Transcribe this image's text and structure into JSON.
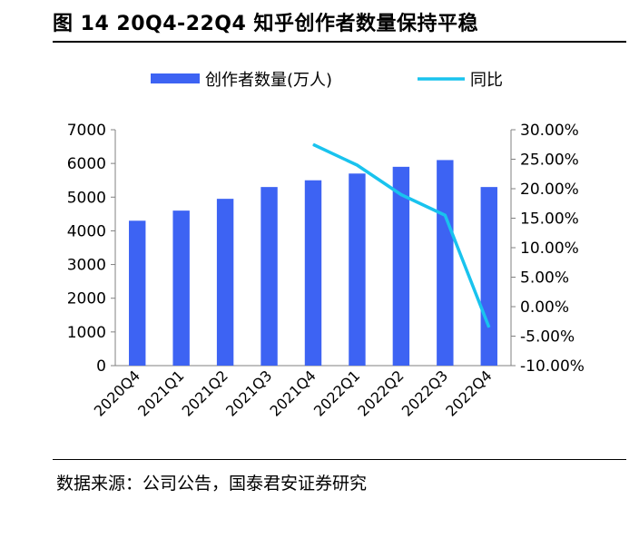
{
  "figure": {
    "title": "图 14 20Q4-22Q4 知乎创作者数量保持平稳",
    "source": "数据来源：公司公告，国泰君安证券研究"
  },
  "colors": {
    "bar": "#3D63F3",
    "line": "#19C3EE",
    "axis": "#808080"
  },
  "chart_data": {
    "type": "bar",
    "categories": [
      "2020Q4",
      "2021Q1",
      "2021Q2",
      "2021Q3",
      "2021Q4",
      "2022Q1",
      "2022Q2",
      "2022Q3",
      "2022Q4"
    ],
    "series": [
      {
        "name": "创作者数量(万人)",
        "type": "bar",
        "axis": "left",
        "values": [
          4300,
          4600,
          4950,
          5300,
          5500,
          5700,
          5900,
          6100,
          5300
        ]
      },
      {
        "name": "同比",
        "type": "line",
        "axis": "right",
        "values": [
          null,
          null,
          null,
          null,
          0.275,
          0.24,
          0.19,
          0.155,
          -0.035
        ]
      }
    ],
    "ylim_left": [
      0,
      7000
    ],
    "yticks_left": [
      "0",
      "1000",
      "2000",
      "3000",
      "4000",
      "5000",
      "6000",
      "7000"
    ],
    "ylim_right": [
      -0.1,
      0.3
    ],
    "yticks_right": [
      "-10.00%",
      "-5.00%",
      "0.00%",
      "5.00%",
      "10.00%",
      "15.00%",
      "20.00%",
      "25.00%",
      "30.00%"
    ],
    "legend_position": "top",
    "grid": false
  }
}
